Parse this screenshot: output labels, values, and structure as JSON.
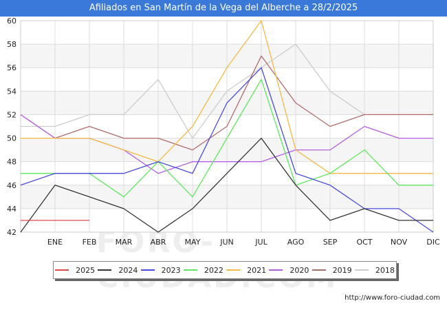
{
  "title": "Afiliados en San Martín de la Vega del Alberche a 28/2/2025",
  "url": "http://www.foro-ciudad.com",
  "watermark": "FORO-CIUDAD.COM",
  "chart_data": {
    "type": "line",
    "title": "Afiliados en San Martín de la Vega del Alberche a 28/2/2025",
    "categories": [
      "",
      "ENE",
      "FEB",
      "MAR",
      "ABR",
      "MAY",
      "JUN",
      "JUL",
      "AGO",
      "SEP",
      "OCT",
      "NOV",
      "DIC"
    ],
    "ylim": [
      42,
      60
    ],
    "yticks": [
      42,
      44,
      46,
      48,
      50,
      52,
      54,
      56,
      58,
      60
    ],
    "grid": true,
    "legend": "bottom",
    "series": [
      {
        "name": "2018",
        "color": "#cccccc",
        "values": [
          51,
          51,
          52,
          52,
          55,
          50,
          54,
          56,
          58,
          54,
          52,
          null,
          null
        ]
      },
      {
        "name": "2019",
        "color": "#b06a6a",
        "values": [
          52,
          50,
          51,
          50,
          50,
          49,
          51,
          57,
          53,
          51,
          52,
          52,
          52
        ]
      },
      {
        "name": "2020",
        "color": "#b55ee6",
        "values": [
          52,
          50,
          50,
          49,
          47,
          48,
          48,
          48,
          49,
          49,
          51,
          50,
          50
        ]
      },
      {
        "name": "2021",
        "color": "#f5b942",
        "values": [
          50,
          50,
          50,
          49,
          48,
          51,
          56,
          60,
          49,
          47,
          47,
          47,
          47
        ]
      },
      {
        "name": "2022",
        "color": "#5ce85c",
        "values": [
          47,
          47,
          47,
          45,
          48,
          45,
          50,
          55,
          46,
          47,
          49,
          46,
          46
        ]
      },
      {
        "name": "2023",
        "color": "#4a4ae0",
        "values": [
          46,
          47,
          47,
          47,
          48,
          47,
          53,
          56,
          47,
          46,
          44,
          44,
          42
        ]
      },
      {
        "name": "2024",
        "color": "#333333",
        "values": [
          42,
          46,
          45,
          44,
          42,
          44,
          47,
          50,
          46,
          43,
          44,
          43,
          43
        ]
      },
      {
        "name": "2025",
        "color": "#e04848",
        "values": [
          43,
          43,
          43,
          null,
          null,
          null,
          null,
          null,
          null,
          null,
          null,
          null,
          null
        ]
      }
    ]
  }
}
